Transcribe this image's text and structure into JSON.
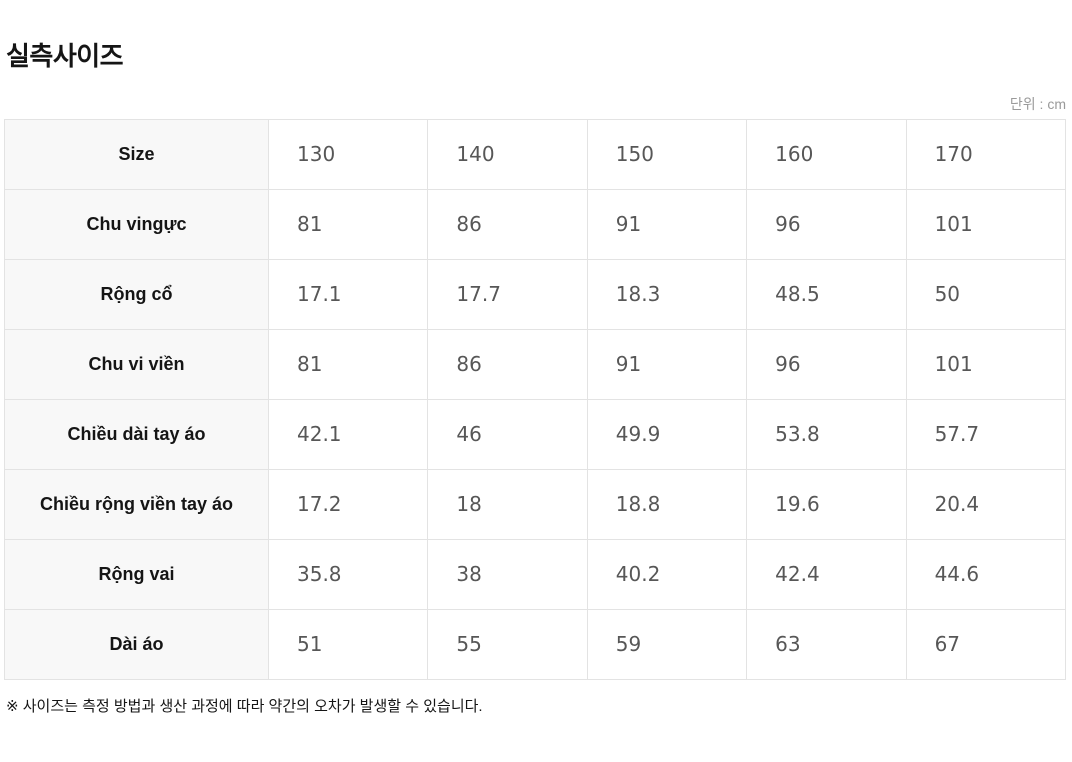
{
  "page": {
    "title": "실측사이즈",
    "unit_label": "단위 : cm",
    "footnote": "※ 사이즈는 측정 방법과 생산 과정에 따라 약간의 오차가 발생할 수 있습니다."
  },
  "colors": {
    "table_border": "#e3e3e3",
    "label_cell_bg": "#f8f8f8",
    "label_text": "#151515",
    "value_text": "#575757",
    "unit_text": "#9a9a9a"
  },
  "table": {
    "rows": [
      {
        "label": "Size",
        "values": [
          "130",
          "140",
          "150",
          "160",
          "170"
        ]
      },
      {
        "label": "Chu vingực",
        "values": [
          "81",
          "86",
          "91",
          "96",
          "101"
        ]
      },
      {
        "label": "Rộng cổ",
        "values": [
          "17.1",
          "17.7",
          "18.3",
          "48.5",
          "50"
        ]
      },
      {
        "label": "Chu vi viền",
        "values": [
          "81",
          "86",
          "91",
          "96",
          "101"
        ]
      },
      {
        "label": "Chiều dài tay áo",
        "values": [
          "42.1",
          "46",
          "49.9",
          "53.8",
          "57.7"
        ]
      },
      {
        "label": "Chiều rộng viền tay áo",
        "values": [
          "17.2",
          "18",
          "18.8",
          "19.6",
          "20.4"
        ]
      },
      {
        "label": "Rộng vai",
        "values": [
          "35.8",
          "38",
          "40.2",
          "42.4",
          "44.6"
        ]
      },
      {
        "label": "Dài áo",
        "values": [
          "51",
          "55",
          "59",
          "63",
          "67"
        ]
      }
    ]
  }
}
